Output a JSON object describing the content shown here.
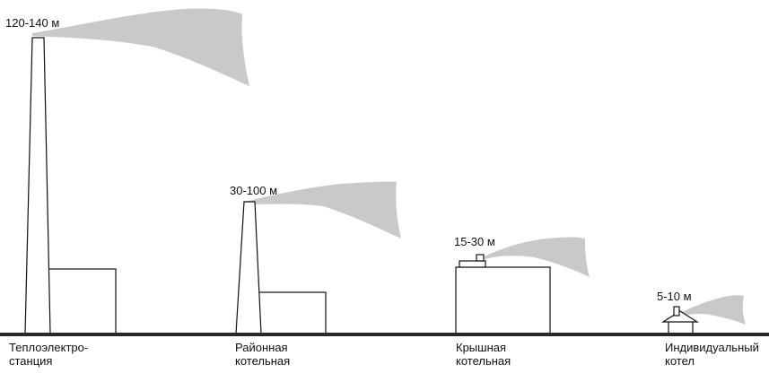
{
  "colors": {
    "smoke": "#c9c9c9",
    "outline": "#111111",
    "ground": "#2a2a2a",
    "background": "#ffffff"
  },
  "sources": [
    {
      "id": "chp",
      "height_text": "120-140 м",
      "caption_line1": "Теплоэлектро-",
      "caption_line2": "станция"
    },
    {
      "id": "district",
      "height_text": "30-100 м",
      "caption_line1": "Районная",
      "caption_line2": "котельная"
    },
    {
      "id": "roof",
      "height_text": "15-30 м",
      "caption_line1": "Крышная",
      "caption_line2": "котельная"
    },
    {
      "id": "individual",
      "height_text": "5-10 м",
      "caption_line1": "Индивидуальный",
      "caption_line2": "котел"
    }
  ]
}
